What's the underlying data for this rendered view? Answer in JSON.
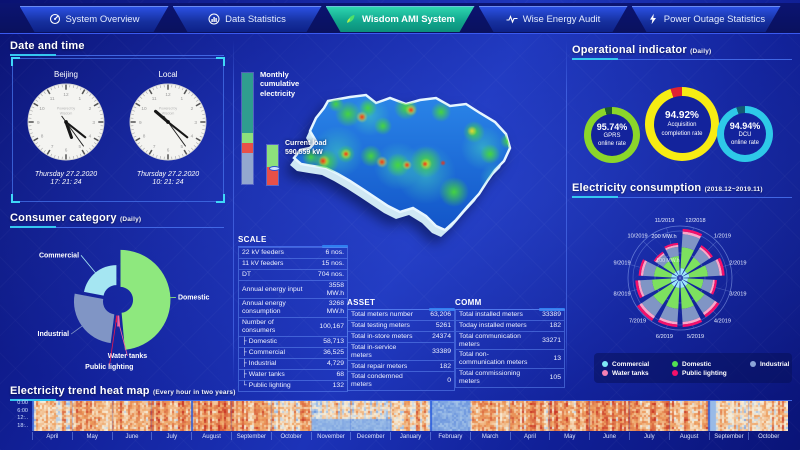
{
  "nav": {
    "tabs": [
      {
        "label": "System Overview",
        "icon": "overview-icon",
        "active": false
      },
      {
        "label": "Data Statistics",
        "icon": "bar-chart-icon",
        "active": false
      },
      {
        "label": "Wisdom AMI System",
        "icon": "leaf-icon",
        "active": true
      },
      {
        "label": "Wise Energy Audit",
        "icon": "pulse-icon",
        "active": false
      },
      {
        "label": "Power Outage Statistics",
        "icon": "lightning-icon",
        "active": false
      }
    ]
  },
  "datetime_panel": {
    "title": "Date and time",
    "watermark_lines": [
      "Powered by",
      "Wisdom"
    ],
    "clocks": [
      {
        "label": "Beijing",
        "date": "Thursday 27.2.2020",
        "time": "17: 21: 24"
      },
      {
        "label": "Local",
        "date": "Thursday 27.2.2020",
        "time": "10: 21: 24"
      }
    ]
  },
  "consumer_panel": {
    "title": "Consumer category",
    "subtitle": "(Daily)"
  },
  "middle": {
    "monthly_label": "Monthly cumulative electricity",
    "current_load_label": "Current load",
    "current_load_value": "590,559 kW"
  },
  "scale_table": {
    "title": "SCALE",
    "rows": [
      {
        "label": "22 kV feeders",
        "value": "6 nos."
      },
      {
        "label": "11 kV feeders",
        "value": "15 nos."
      },
      {
        "label": "DT",
        "value": "704 nos."
      },
      {
        "label": "Annual energy input",
        "value": "3558 MW.h",
        "tall": true
      },
      {
        "label": "Annual energy consumption",
        "value": "3268 MW.h",
        "tall": true
      },
      {
        "label": "Number of consumers",
        "value": "100,167"
      },
      {
        "label": "├ Domestic",
        "value": "58,713"
      },
      {
        "label": "├ Commercial",
        "value": "36,525"
      },
      {
        "label": "├ Industrial",
        "value": "4,729"
      },
      {
        "label": "├ Water tanks",
        "value": "68"
      },
      {
        "label": "└ Public lighting",
        "value": "132"
      }
    ]
  },
  "asset_table": {
    "title": "ASSET",
    "rows": [
      {
        "label": "Total meters number",
        "value": "63,206"
      },
      {
        "label": "Total testing meters",
        "value": "5261"
      },
      {
        "label": "Total in-store meters",
        "value": "24374"
      },
      {
        "label": "Total in-service meters",
        "value": "33389"
      },
      {
        "label": "Total repair meters",
        "value": "182"
      },
      {
        "label": "Total condemned meters",
        "value": "0"
      }
    ]
  },
  "comm_table": {
    "title": "COMM",
    "rows": [
      {
        "label": "Total installed meters",
        "value": "33389"
      },
      {
        "label": "Today installed meters",
        "value": "182"
      },
      {
        "label": "Total communication meters",
        "value": "33271"
      },
      {
        "label": "Total non-communication meters",
        "value": "13",
        "tall": true
      },
      {
        "label": "Total commissioning meters",
        "value": "105"
      }
    ]
  },
  "operational_panel": {
    "title": "Operational indicator",
    "subtitle": "(Daily)",
    "gauges": [
      {
        "value_text": "95.74%",
        "label_lines": [
          "GPRS",
          "online rate"
        ],
        "color": "#8bd62a",
        "rest_color": "#1c5a2e"
      },
      {
        "value_text": "94.92%",
        "label_lines": [
          "Acquisition",
          "completion rate"
        ],
        "color": "#f7ec13",
        "rest_color": "#e02330"
      },
      {
        "value_text": "94.94%",
        "label_lines": [
          "DCU",
          "online rate"
        ],
        "color": "#2ec9e8",
        "rest_color": "#135a74"
      }
    ]
  },
  "consumption_panel": {
    "title": "Electricity consumption",
    "subtitle": "(2018.12~2019.11)",
    "radial_labels": [
      "200 MW.h",
      "100 MW.h"
    ],
    "legend": [
      {
        "label": "Commercial",
        "color": "#7ee9f7"
      },
      {
        "label": "Domestic",
        "color": "#52e052"
      },
      {
        "label": "Industrial",
        "color": "#8ca4d8"
      },
      {
        "label": "Water tanks",
        "color": "#f57fb4"
      },
      {
        "label": "Public lighting",
        "color": "#f5106a"
      }
    ]
  },
  "trend_panel": {
    "title": "Electricity trend heat map",
    "subtitle": "(Every hour in two years)",
    "y_labels": [
      "0:00",
      "6:00",
      "12:..",
      "18:.."
    ],
    "months": [
      "April",
      "May",
      "June",
      "July",
      "August",
      "September",
      "October",
      "November",
      "December",
      "January",
      "February",
      "March",
      "April",
      "May",
      "June",
      "July",
      "August",
      "September",
      "October"
    ]
  },
  "chart_data": [
    {
      "name": "consumer_category",
      "type": "pie",
      "title": "Consumer category (Daily)",
      "unit": "share, estimated %",
      "slices": [
        {
          "label": "Domestic",
          "value": 48.6,
          "color": "#8ee87e",
          "radius": 50
        },
        {
          "label": "Water tanks",
          "value": 2.0,
          "color": "#f565a0",
          "radius": 24
        },
        {
          "label": "Public lighting",
          "value": 1.4,
          "color": "#e8174f",
          "radius": 20
        },
        {
          "label": "Industrial",
          "value": 26.0,
          "color": "#8095c5",
          "radius": 42
        },
        {
          "label": "Commercial",
          "value": 22.0,
          "color": "#a5e6f2",
          "radius": 33
        }
      ]
    },
    {
      "name": "operational_indicators",
      "type": "pie",
      "title": "Operational indicator (Daily)",
      "items": [
        {
          "label": "GPRS online rate",
          "value": 95.74
        },
        {
          "label": "Acquisition completion rate",
          "value": 94.92
        },
        {
          "label": "DCU online rate",
          "value": 94.94
        }
      ]
    },
    {
      "name": "electricity_consumption",
      "type": "bar",
      "polar": true,
      "title": "Electricity consumption (2018.12~2019.11)",
      "unit": "MW.h",
      "r_ticks": [
        100,
        200
      ],
      "categories": [
        "12/2018",
        "1/2019",
        "2/2019",
        "3/2019",
        "4/2019",
        "5/2019",
        "6/2019",
        "7/2019",
        "8/2019",
        "9/2019",
        "10/2019",
        "11/2019"
      ],
      "series": [
        {
          "name": "Commercial",
          "color": "#9fe8fa",
          "values": [
            32,
            25,
            29,
            23,
            30,
            32,
            32,
            33,
            29,
            26,
            20,
            22
          ]
        },
        {
          "name": "Domestic",
          "color": "#7de15f",
          "values": [
            95,
            74,
            85,
            70,
            90,
            95,
            95,
            99,
            85,
            79,
            58,
            65
          ]
        },
        {
          "name": "Industrial",
          "color": "#8095c5",
          "values": [
            59,
            46,
            53,
            43,
            56,
            59,
            59,
            62,
            53,
            49,
            36,
            41
          ]
        },
        {
          "name": "Water tanks",
          "color": "#f9a8c9",
          "values": [
            12,
            10,
            11,
            9,
            12,
            12,
            12,
            13,
            11,
            11,
            8,
            9
          ]
        },
        {
          "name": "Public lighting",
          "color": "#f5106a",
          "values": [
            12,
            10,
            12,
            10,
            12,
            12,
            12,
            13,
            12,
            10,
            8,
            9
          ]
        }
      ]
    },
    {
      "name": "monthly_cumulative_electricity",
      "type": "bar",
      "title": "Monthly cumulative electricity",
      "segments": [
        {
          "color": "#2f9d8f",
          "pct": 54
        },
        {
          "color": "#8de07c",
          "pct": 9
        },
        {
          "color": "#e85048",
          "pct": 9
        },
        {
          "color": "#93a7cf",
          "pct": 28
        }
      ]
    },
    {
      "name": "current_load",
      "type": "bar",
      "title": "Current load",
      "value_text": "590,559 kW",
      "segments": [
        {
          "color": "#8de07c",
          "pct": 55
        },
        {
          "color": "#e85048",
          "pct": 45
        }
      ]
    },
    {
      "name": "electricity_trend_heatmap",
      "type": "heatmap",
      "title": "Electricity trend heat map (Every hour in two years)",
      "x_months": [
        "April",
        "May",
        "June",
        "July",
        "August",
        "September",
        "October",
        "November",
        "December",
        "January",
        "February",
        "March",
        "April",
        "May",
        "June",
        "July",
        "August",
        "September",
        "October"
      ],
      "y_hours_range": [
        0,
        24
      ],
      "y_tick_labels": [
        "0:00",
        "6:00",
        "12:..",
        "18:.."
      ],
      "palette": {
        "low": "#3b6fd8",
        "mid": "#f8f0dc",
        "high": "#c83424"
      },
      "month_warmth": [
        0.6,
        0.66,
        0.7,
        0.72,
        0.75,
        0.7,
        0.63,
        0.52,
        0.5,
        0.62,
        0.22,
        0.66,
        0.7,
        0.73,
        0.76,
        0.72,
        0.68,
        0.58,
        0.64
      ]
    }
  ]
}
